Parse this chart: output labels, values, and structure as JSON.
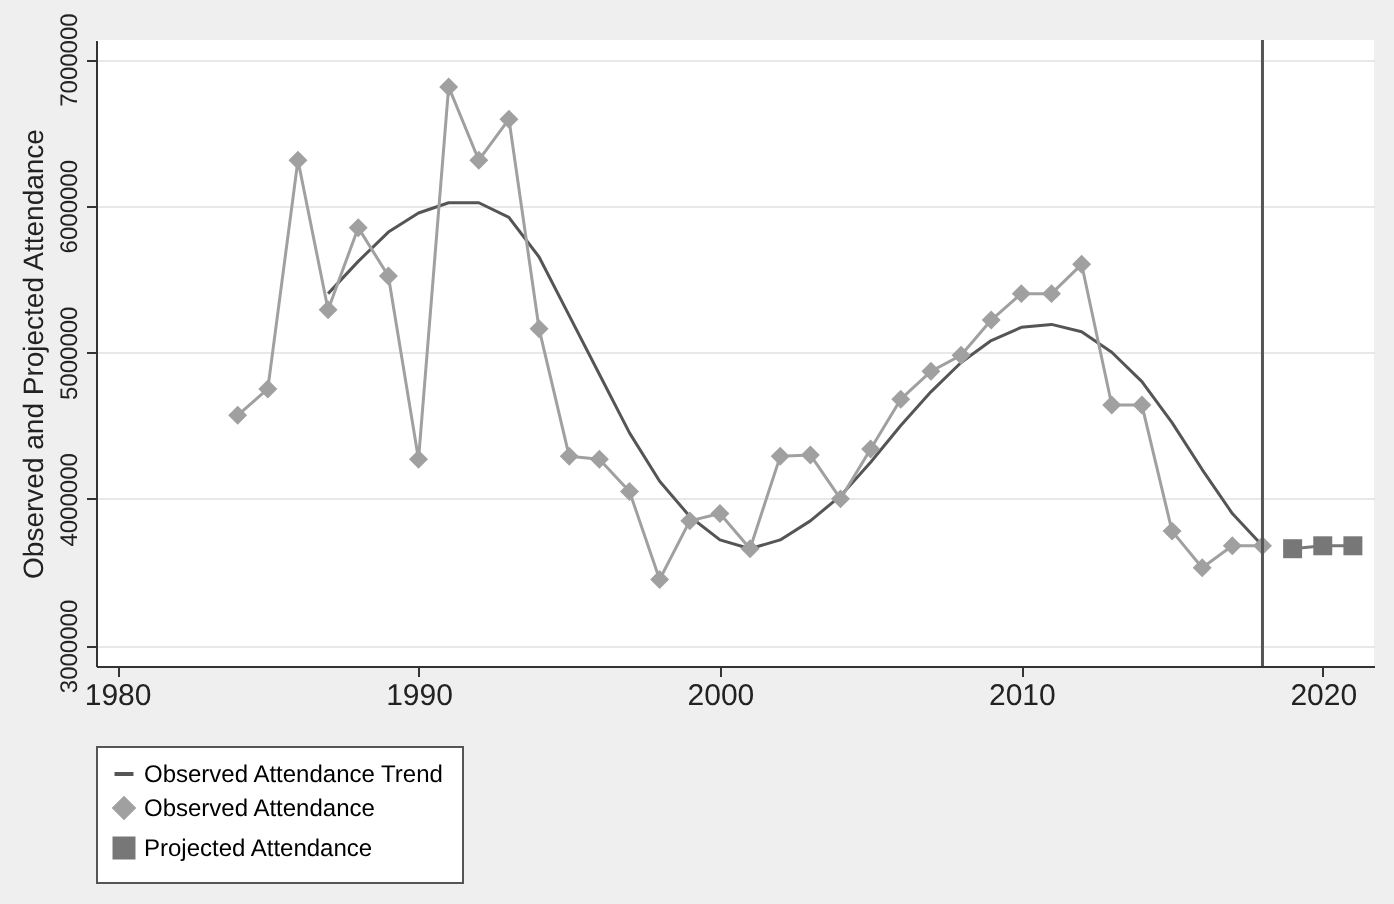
{
  "chart_data": {
    "type": "line",
    "ylabel": "Observed and Projected Attendance",
    "xlim": [
      1979.3,
      2021.7
    ],
    "xticks": [
      1980,
      1990,
      2000,
      2010,
      2020
    ],
    "ylim": [
      2860000,
      7130000
    ],
    "yticks": [
      3000000,
      4000000,
      5000000,
      6000000,
      7000000
    ],
    "grid": "y",
    "legend": "bottom",
    "line_style": "solid",
    "ref_lines": [
      {
        "axis": "x",
        "value": 2018,
        "color": "#555555"
      }
    ],
    "series": [
      {
        "name": "Observed Attendance Trend",
        "color": "#555555",
        "marker": "none",
        "x": [
          1987,
          1988,
          1989,
          1990,
          1991,
          1992,
          1993,
          1994,
          1995,
          1996,
          1997,
          1998,
          1999,
          2000,
          2001,
          2002,
          2003,
          2004,
          2005,
          2006,
          2007,
          2008,
          2009,
          2010,
          2011,
          2012,
          2013,
          2014,
          2015,
          2016,
          2017,
          2018
        ],
        "values": [
          5400000,
          5620000,
          5820000,
          5950000,
          6020000,
          6020000,
          5920000,
          5650000,
          5250000,
          4850000,
          4450000,
          4120000,
          3880000,
          3720000,
          3660000,
          3720000,
          3850000,
          4020000,
          4250000,
          4500000,
          4730000,
          4930000,
          5080000,
          5170000,
          5190000,
          5140000,
          5000000,
          4800000,
          4520000,
          4200000,
          3900000,
          3680000
        ]
      },
      {
        "name": "Observed Attendance",
        "color": "#a0a0a0",
        "marker": "diamond",
        "x": [
          1984,
          1985,
          1986,
          1987,
          1988,
          1989,
          1990,
          1991,
          1992,
          1993,
          1994,
          1995,
          1996,
          1997,
          1998,
          1999,
          2000,
          2001,
          2002,
          2003,
          2004,
          2005,
          2006,
          2007,
          2008,
          2009,
          2010,
          2011,
          2012,
          2013,
          2014,
          2015,
          2016,
          2017,
          2018
        ],
        "values": [
          4570000,
          4750000,
          6310000,
          5290000,
          5850000,
          5520000,
          4270000,
          6810000,
          6310000,
          6590000,
          5160000,
          4290000,
          4270000,
          4050000,
          3450000,
          3850000,
          3900000,
          3660000,
          4290000,
          4300000,
          4000000,
          4340000,
          4680000,
          4870000,
          4980000,
          5220000,
          5400000,
          5400000,
          5600000,
          4640000,
          4640000,
          3780000,
          3530000,
          3680000,
          3680000
        ]
      },
      {
        "name": "Projected Attendance",
        "color": "#777777",
        "marker": "square",
        "x": [
          2019,
          2020,
          2021
        ],
        "values": [
          3660000,
          3680000,
          3680000
        ]
      }
    ]
  }
}
